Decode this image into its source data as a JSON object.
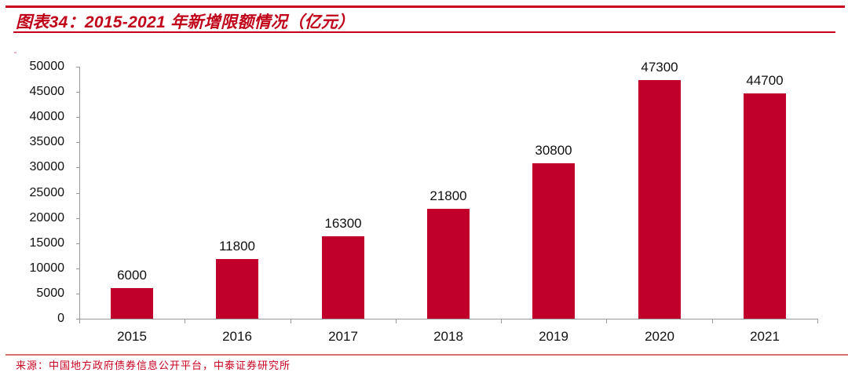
{
  "header": {
    "title": "图表34：2015-2021 年新增限额情况（亿元）"
  },
  "footer": {
    "source": "来源：中国地方政府债券信息公开平台，中泰证券研究所"
  },
  "colors": {
    "bar": "#c0002b",
    "accent_rule": "#c8001e",
    "title_text": "#c00018"
  },
  "chart_data": {
    "type": "bar",
    "title": "2015-2021 年新增限额情况（亿元）",
    "xlabel": "",
    "ylabel": "",
    "categories": [
      "2015",
      "2016",
      "2017",
      "2018",
      "2019",
      "2020",
      "2021"
    ],
    "values": [
      6000,
      11800,
      16300,
      21800,
      30800,
      47300,
      44700
    ],
    "data_labels": [
      "6000",
      "11800",
      "16300",
      "21800",
      "30800",
      "47300",
      "44700"
    ],
    "yticks": [
      "0",
      "5000",
      "10000",
      "15000",
      "20000",
      "25000",
      "30000",
      "35000",
      "40000",
      "45000",
      "50000"
    ],
    "ylim": [
      0,
      50000
    ],
    "grid": false,
    "legend": null,
    "unit": "亿元"
  }
}
